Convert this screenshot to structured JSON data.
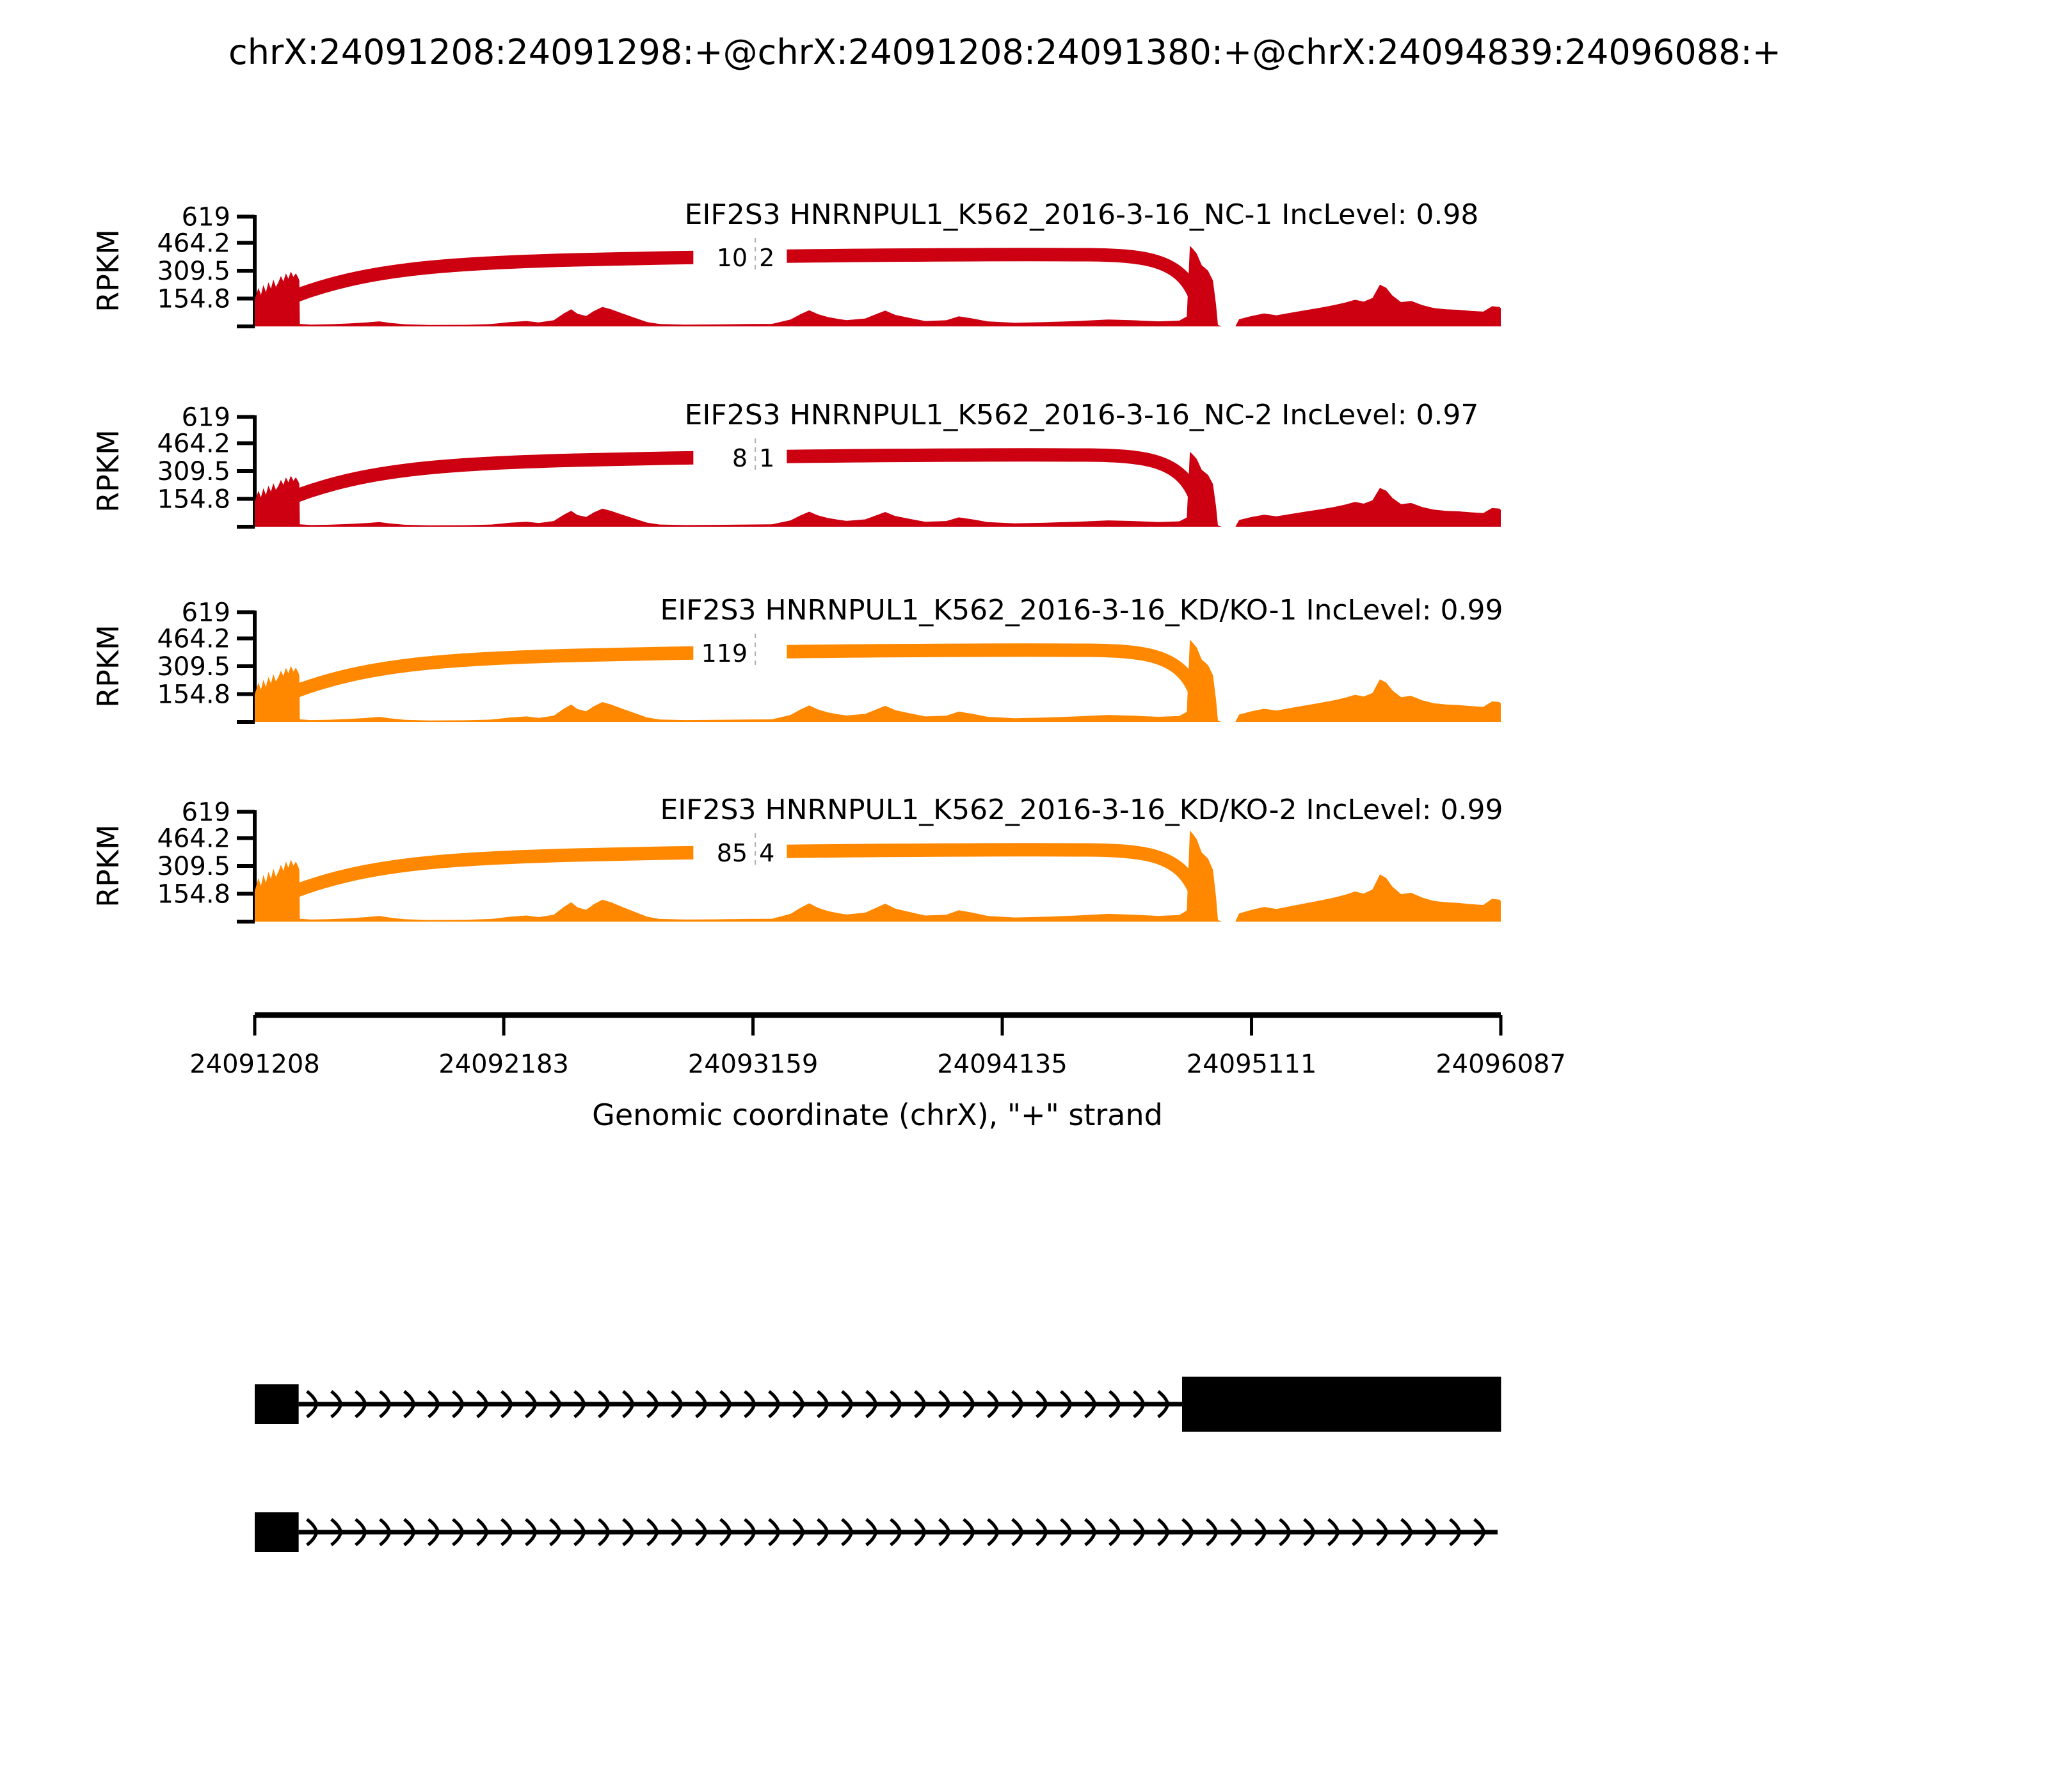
{
  "title": "chrX:24091208:24091298:+@chrX:24091208:24091380:+@chrX:24094839:24096088:+",
  "chart_data": {
    "type": "area",
    "subtype": "sashimi-plot",
    "xlabel": "Genomic coordinate (chrX), \"+\" strand",
    "ylabel": "RPKM",
    "x_range": [
      24091208,
      24096087
    ],
    "x_ticks": [
      "24091208",
      "24092183",
      "24093159",
      "24094135",
      "24095111",
      "24096087"
    ],
    "y_max": 619,
    "y_ticks": [
      "619",
      "464.2",
      "309.5",
      "154.8"
    ],
    "grid": false,
    "legend_position": "none",
    "tracks": [
      {
        "label": "EIF2S3 HNRNPUL1_K562_2016-3-16_NC-1 IncLevel: 0.98",
        "inc_level": "0.98",
        "color": "#CC0011",
        "amplitude": 1.0,
        "junction_count_main": "10",
        "junction_count_clipped": "2"
      },
      {
        "label": "EIF2S3 HNRNPUL1_K562_2016-3-16_NC-2 IncLevel: 0.97",
        "inc_level": "0.97",
        "color": "#CC0011",
        "amplitude": 0.93,
        "junction_count_main": "8",
        "junction_count_clipped": "1"
      },
      {
        "label": "EIF2S3 HNRNPUL1_K562_2016-3-16_KD/KO-1 IncLevel: 0.99",
        "inc_level": "0.99",
        "color": "#FF8800",
        "amplitude": 1.02,
        "junction_count_main": "119",
        "junction_count_clipped": ""
      },
      {
        "label": "EIF2S3 HNRNPUL1_K562_2016-3-16_KD/KO-2 IncLevel: 0.99",
        "inc_level": "0.99",
        "color": "#FF8800",
        "amplitude": 1.13,
        "junction_count_main": "85",
        "junction_count_clipped": "4"
      }
    ],
    "coverage_profile": [
      [
        0,
        150
      ],
      [
        0.003,
        215
      ],
      [
        0.005,
        175
      ],
      [
        0.007,
        230
      ],
      [
        0.009,
        190
      ],
      [
        0.011,
        245
      ],
      [
        0.013,
        210
      ],
      [
        0.015,
        260
      ],
      [
        0.017,
        220
      ],
      [
        0.019,
        245
      ],
      [
        0.021,
        280
      ],
      [
        0.023,
        250
      ],
      [
        0.025,
        295
      ],
      [
        0.027,
        265
      ],
      [
        0.029,
        305
      ],
      [
        0.031,
        275
      ],
      [
        0.033,
        295
      ],
      [
        0.035,
        270
      ],
      [
        0.0358,
        255
      ],
      [
        0.0362,
        14
      ],
      [
        0.045,
        10
      ],
      [
        0.06,
        12
      ],
      [
        0.075,
        16
      ],
      [
        0.09,
        22
      ],
      [
        0.1,
        28
      ],
      [
        0.108,
        20
      ],
      [
        0.12,
        12
      ],
      [
        0.14,
        8
      ],
      [
        0.17,
        9
      ],
      [
        0.19,
        13
      ],
      [
        0.205,
        24
      ],
      [
        0.218,
        30
      ],
      [
        0.228,
        22
      ],
      [
        0.24,
        34
      ],
      [
        0.248,
        72
      ],
      [
        0.254,
        95
      ],
      [
        0.259,
        70
      ],
      [
        0.266,
        58
      ],
      [
        0.272,
        85
      ],
      [
        0.279,
        108
      ],
      [
        0.286,
        95
      ],
      [
        0.295,
        72
      ],
      [
        0.305,
        48
      ],
      [
        0.315,
        24
      ],
      [
        0.325,
        13
      ],
      [
        0.345,
        10
      ],
      [
        0.37,
        11
      ],
      [
        0.395,
        13
      ],
      [
        0.415,
        14
      ],
      [
        0.43,
        38
      ],
      [
        0.438,
        68
      ],
      [
        0.445,
        90
      ],
      [
        0.452,
        68
      ],
      [
        0.46,
        52
      ],
      [
        0.468,
        42
      ],
      [
        0.475,
        35
      ],
      [
        0.49,
        44
      ],
      [
        0.498,
        66
      ],
      [
        0.506,
        88
      ],
      [
        0.514,
        64
      ],
      [
        0.525,
        48
      ],
      [
        0.538,
        30
      ],
      [
        0.555,
        34
      ],
      [
        0.565,
        56
      ],
      [
        0.576,
        44
      ],
      [
        0.588,
        28
      ],
      [
        0.61,
        20
      ],
      [
        0.635,
        24
      ],
      [
        0.66,
        30
      ],
      [
        0.685,
        38
      ],
      [
        0.705,
        34
      ],
      [
        0.725,
        28
      ],
      [
        0.742,
        32
      ],
      [
        0.748,
        55
      ],
      [
        0.7505,
        448
      ],
      [
        0.753,
        430
      ],
      [
        0.756,
        405
      ],
      [
        0.76,
        340
      ],
      [
        0.765,
        310
      ],
      [
        0.769,
        255
      ],
      [
        0.7715,
        120
      ],
      [
        0.773,
        8
      ],
      [
        0.776,
        0
      ],
      [
        0.787,
        0
      ],
      [
        0.79,
        40
      ],
      [
        0.8,
        58
      ],
      [
        0.81,
        72
      ],
      [
        0.82,
        62
      ],
      [
        0.833,
        78
      ],
      [
        0.845,
        92
      ],
      [
        0.856,
        105
      ],
      [
        0.866,
        118
      ],
      [
        0.875,
        132
      ],
      [
        0.883,
        148
      ],
      [
        0.89,
        138
      ],
      [
        0.897,
        158
      ],
      [
        0.903,
        232
      ],
      [
        0.908,
        215
      ],
      [
        0.913,
        172
      ],
      [
        0.92,
        135
      ],
      [
        0.928,
        142
      ],
      [
        0.937,
        118
      ],
      [
        0.946,
        102
      ],
      [
        0.956,
        95
      ],
      [
        0.966,
        92
      ],
      [
        0.976,
        86
      ],
      [
        0.986,
        82
      ],
      [
        0.993,
        112
      ],
      [
        0.999,
        108
      ],
      [
        1,
        100
      ]
    ],
    "junction_arc": {
      "start_frac": 0.033,
      "end_frac": 0.754,
      "gap_frac": [
        0.352,
        0.427
      ],
      "dash_frac": 0.4017,
      "band_width": 21
    },
    "gene_model": {
      "strand": "+",
      "rows": [
        {
          "exons_bp": [
            [
              24091208,
              24091380
            ],
            [
              24094839,
              24096088
            ]
          ],
          "line_end_bp": 24094839
        },
        {
          "exons_bp": [
            [
              24091208,
              24091380
            ]
          ],
          "line_end_bp": 24096088
        }
      ]
    }
  }
}
